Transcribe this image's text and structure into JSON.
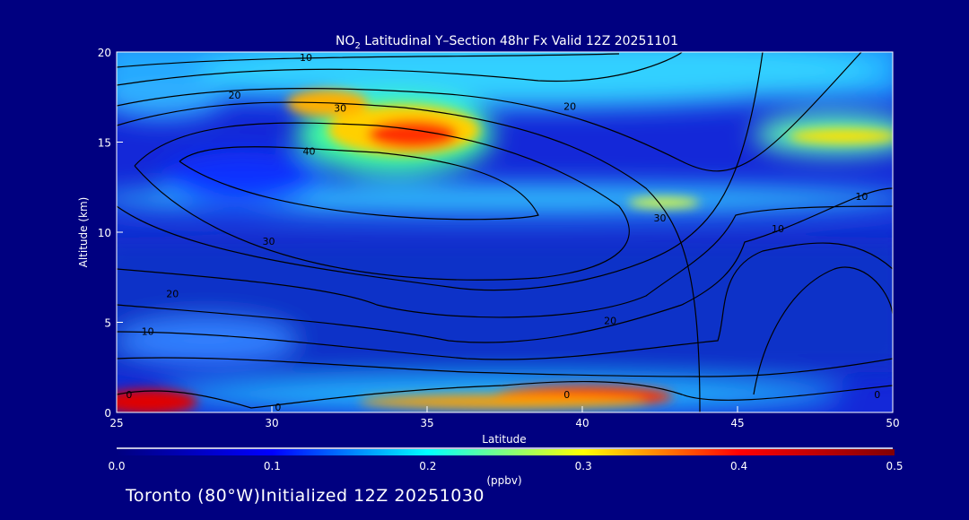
{
  "chart_data": {
    "type": "heatmap",
    "title": {
      "prefix": "NO",
      "sub": "2",
      "rest": " Latitudinal Y–Section 48hr  Fx Valid 12Z 20251101"
    },
    "xlabel": "Latitude",
    "ylabel": "Altitude (km)",
    "xlim": [
      25,
      50
    ],
    "ylim": [
      0,
      20
    ],
    "xticks": [
      25,
      30,
      35,
      40,
      45,
      50
    ],
    "yticks": [
      0,
      5,
      10,
      15,
      20
    ],
    "colorbar": {
      "range": [
        0.0,
        0.5
      ],
      "ticks": [
        "0.0",
        "0.1",
        "0.2",
        "0.3",
        "0.4",
        "0.5"
      ],
      "unit": "(ppbv)",
      "colors": [
        "#000080",
        "#0000ff",
        "#00ffff",
        "#ffff00",
        "#ff0000",
        "#800000"
      ]
    },
    "hotspots": [
      {
        "lat": 34.5,
        "alt": 15.3,
        "value": 0.47
      },
      {
        "lat": 32,
        "alt": 17.2,
        "value": 0.38
      },
      {
        "lat": 26,
        "alt": 0.6,
        "value": 0.5
      },
      {
        "lat": 41,
        "alt": 0.8,
        "value": 0.5
      },
      {
        "lat": 49,
        "alt": 15.2,
        "value": 0.3
      },
      {
        "lat": 42,
        "alt": 11.5,
        "value": 0.25
      }
    ],
    "contour_labels": [
      {
        "text": "10",
        "lat": 31.1,
        "alt": 19.7
      },
      {
        "text": "20",
        "lat": 28.8,
        "alt": 17.6
      },
      {
        "text": "30",
        "lat": 32.2,
        "alt": 16.9
      },
      {
        "text": "40",
        "lat": 31.2,
        "alt": 14.5
      },
      {
        "text": "20",
        "lat": 39.6,
        "alt": 17.0
      },
      {
        "text": "30",
        "lat": 42.5,
        "alt": 10.8
      },
      {
        "text": "30",
        "lat": 29.9,
        "alt": 9.5
      },
      {
        "text": "20",
        "lat": 26.8,
        "alt": 6.6
      },
      {
        "text": "10",
        "lat": 26.0,
        "alt": 4.5
      },
      {
        "text": "10",
        "lat": 46.3,
        "alt": 10.2
      },
      {
        "text": "10",
        "lat": 49.0,
        "alt": 12.0
      },
      {
        "text": "20",
        "lat": 40.9,
        "alt": 5.1
      },
      {
        "text": "0",
        "lat": 25.4,
        "alt": 1.0
      },
      {
        "text": "0",
        "lat": 30.2,
        "alt": 0.3
      },
      {
        "text": "0",
        "lat": 39.5,
        "alt": 1.0
      },
      {
        "text": "0",
        "lat": 49.5,
        "alt": 1.0
      }
    ]
  },
  "footer": {
    "location": "Toronto (80°W)Initialized 12Z 20251030"
  }
}
